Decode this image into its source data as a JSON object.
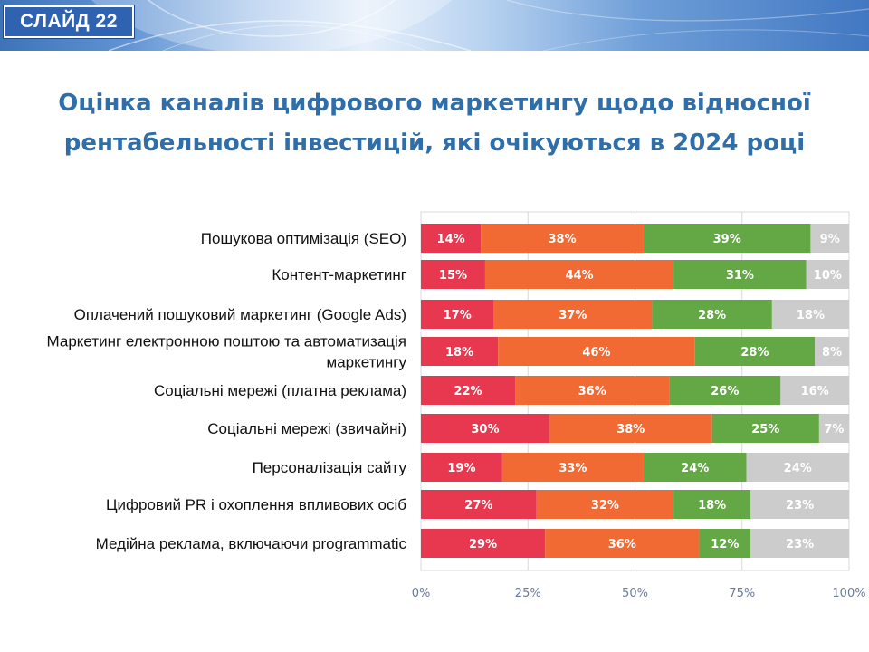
{
  "slide": {
    "badge": "СЛАЙД 22"
  },
  "title": {
    "line1": "Оцінка каналів цифрового маркетингу щодо відносної",
    "line2": "рентабельності інвестицій, які очікуються в 2024 році"
  },
  "colors": {
    "title": "#2f6ea8",
    "badge": "#2f62b0",
    "grid": "#d5d9de"
  },
  "chart_data": {
    "type": "bar",
    "orientation": "horizontal",
    "stacked": true,
    "categories": [
      [
        "Пошукова оптимізація (SEO)"
      ],
      [
        "Контент-маркетинг"
      ],
      [
        "Оплачений пошуковий маркетинг (Google Ads)"
      ],
      [
        "Маркетинг електронною поштою та автоматизація",
        "маркетингу"
      ],
      [
        "Соціальні мережі (платна реклама)"
      ],
      [
        "Соціальні мережі (звичайні)"
      ],
      [
        "Персоналізація сайту"
      ],
      [
        "Цифровий PR і охоплення впливових осіб"
      ],
      [
        "Медійна реклама, включаючи programmatic"
      ]
    ],
    "series": [
      {
        "color": "#e8384f",
        "values": [
          14,
          15,
          17,
          18,
          22,
          30,
          19,
          27,
          29
        ],
        "labels": [
          "14%",
          "15%",
          "17%",
          "18%",
          "22%",
          "30%",
          "19%",
          "27%",
          "29%"
        ]
      },
      {
        "color": "#f26a33",
        "values": [
          38,
          44,
          37,
          46,
          36,
          38,
          33,
          32,
          36
        ],
        "labels": [
          "38%",
          "44%",
          "37%",
          "46%",
          "36%",
          "38%",
          "33%",
          "32%",
          "36%"
        ]
      },
      {
        "color": "#63a844",
        "values": [
          39,
          31,
          28,
          28,
          26,
          25,
          24,
          18,
          12
        ],
        "labels": [
          "39%",
          "31%",
          "28%",
          "28%",
          "26%",
          "25%",
          "24%",
          "18%",
          "12%"
        ]
      },
      {
        "color": "#cccccc",
        "values": [
          9,
          10,
          18,
          8,
          16,
          7,
          24,
          23,
          23
        ],
        "labels": [
          "9%",
          "10%",
          "18%",
          "8%",
          "16%",
          "7%",
          "24%",
          "23%",
          "23%"
        ]
      }
    ],
    "xticks": [
      "0%",
      "25%",
      "50%",
      "75%",
      "100%"
    ],
    "xlim": [
      0,
      100
    ],
    "grid": true,
    "legend": "none"
  }
}
